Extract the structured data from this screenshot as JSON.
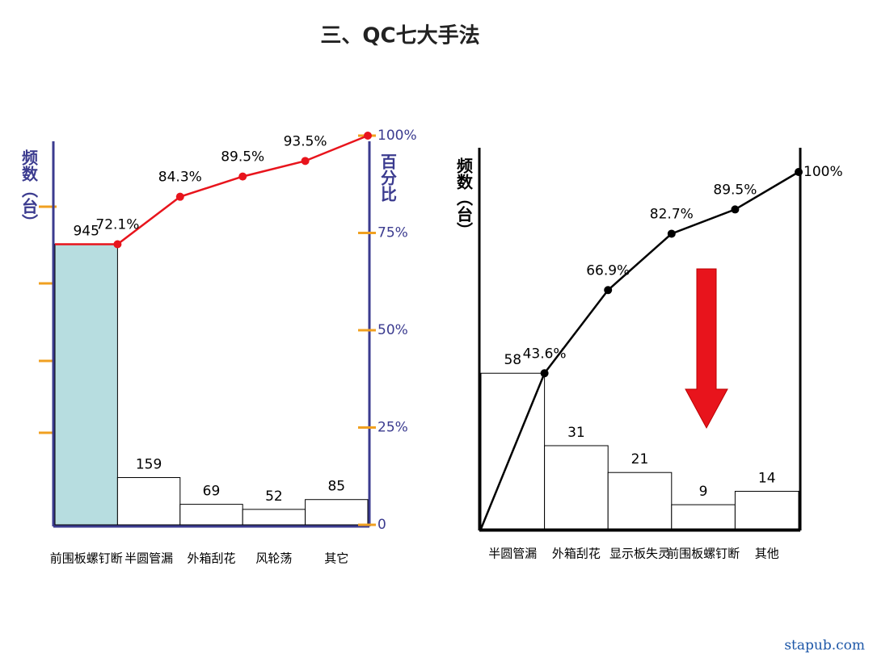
{
  "title": "三、QC七大手法",
  "watermark": "stapub.com",
  "chart_data": [
    {
      "type": "pareto",
      "y_label": "频数（台）",
      "y2_label": "百分比",
      "categories": [
        "前围板螺钉断",
        "半圆管漏",
        "外箱刮花",
        "风轮荡",
        "其它"
      ],
      "values": [
        945,
        159,
        69,
        52,
        85
      ],
      "bar_colors": [
        "#b7dde0",
        "#ffffff",
        "#ffffff",
        "#ffffff",
        "#ffffff"
      ],
      "line_values": [
        72.1,
        84.3,
        89.5,
        93.5,
        100
      ],
      "line_value_labels": [
        "72.1%",
        "84.3%",
        "89.5%",
        "93.5%",
        null
      ],
      "line_color": "#e8141c",
      "ylim": [
        0,
        1310
      ],
      "y2lim": [
        0,
        100
      ],
      "y2ticks": [
        0,
        {
          "value": 25,
          "label": "25%"
        },
        {
          "value": 50,
          "label": "50%"
        },
        {
          "value": 75,
          "label": "75%"
        },
        {
          "value": 100,
          "label": "100%"
        }
      ]
    },
    {
      "type": "pareto",
      "y_label": "频数（台）",
      "categories": [
        "半圆管漏",
        "外箱刮花",
        "显示板失灵",
        "前围板螺钉断",
        "其他"
      ],
      "values": [
        58,
        31,
        21,
        9,
        14
      ],
      "bar_colors": [
        "#ffffff",
        "#ffffff",
        "#ffffff",
        "#ffffff",
        "#ffffff"
      ],
      "line_values": [
        43.6,
        66.9,
        82.7,
        89.5,
        100
      ],
      "line_value_labels": [
        "43.6%",
        "66.9%",
        "82.7%",
        "89.5%",
        "100%"
      ],
      "line_color": "#000000",
      "ylim": [
        0,
        133
      ],
      "y2lim": [
        0,
        100
      ]
    }
  ]
}
